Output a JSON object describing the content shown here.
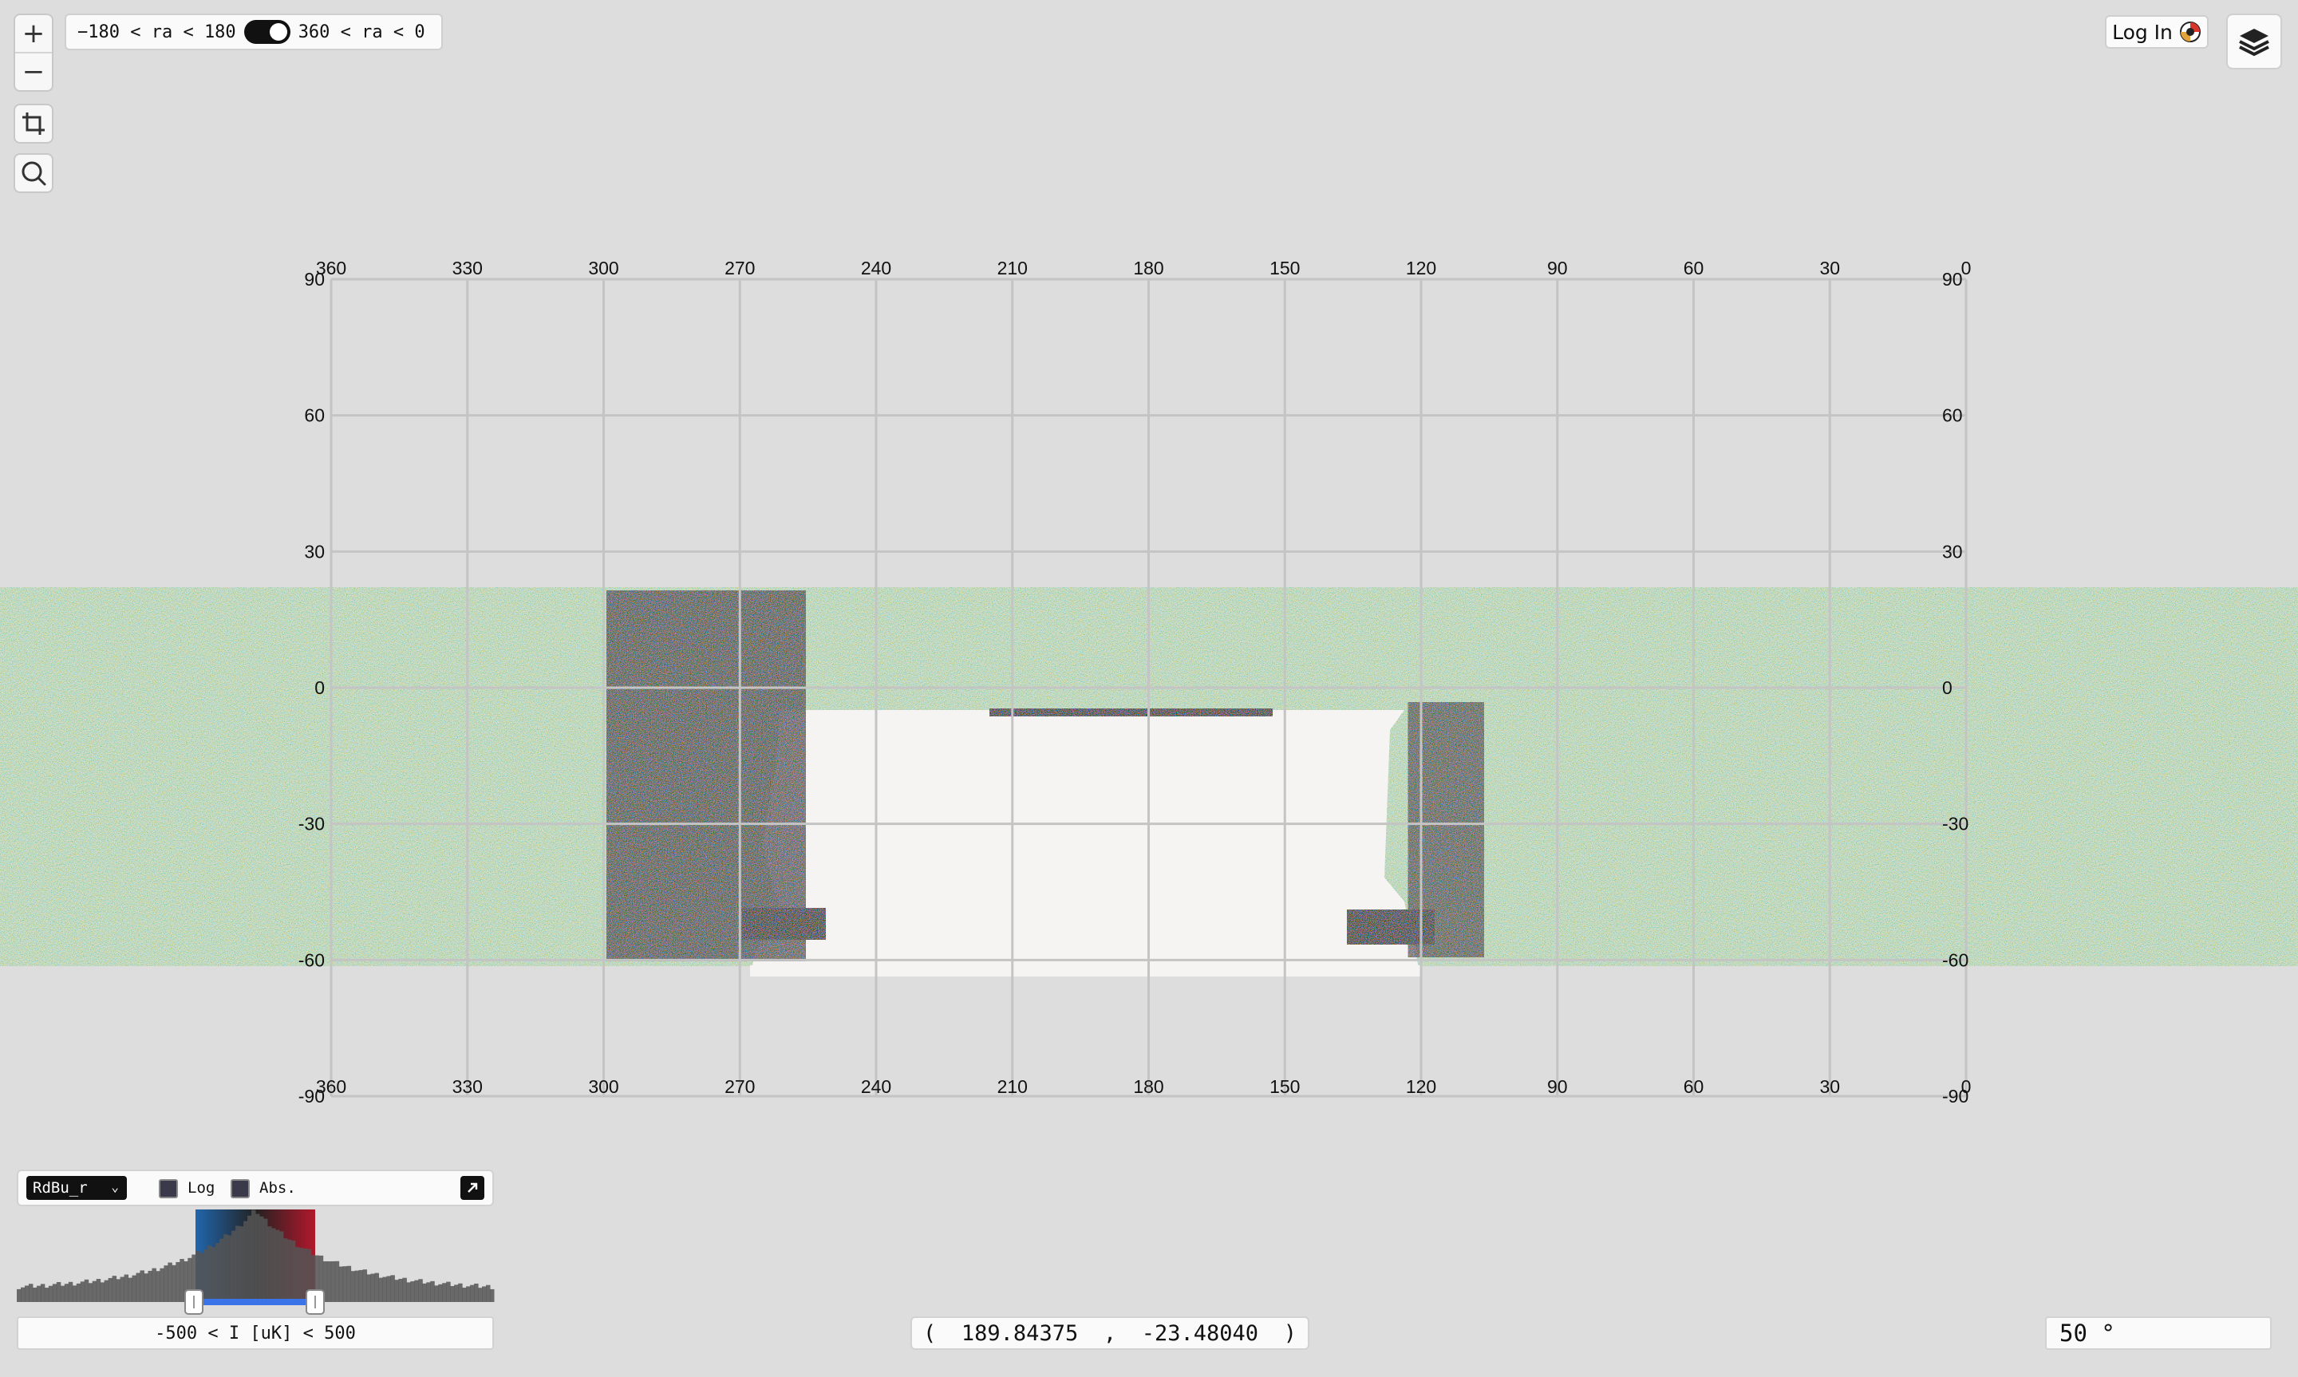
{
  "controls": {
    "zoom_in_label": "+",
    "zoom_out_label": "−",
    "ra_left_label": "−180 < ra < 180",
    "ra_right_label": "360 < ra < 0",
    "ra_toggle_on": true
  },
  "header": {
    "login_label": "Log In"
  },
  "map": {
    "ra_ticks": [
      "360",
      "330",
      "300",
      "270",
      "240",
      "210",
      "180",
      "150",
      "120",
      "90",
      "60",
      "30",
      "0"
    ],
    "dec_ticks": [
      "90",
      "60",
      "30",
      "0",
      "-30",
      "-60",
      "-90"
    ],
    "ra_range_deg": [
      360,
      0
    ],
    "dec_range_deg": [
      -90,
      90
    ],
    "coverage_dec_range_deg": [
      -63,
      22
    ]
  },
  "colormap": {
    "name": "RdBu_r",
    "log_label": "Log",
    "log_checked": false,
    "abs_label": "Abs.",
    "abs_checked": false,
    "range_text": "-500 < I [uK] < 500",
    "colors": {
      "low": "#2166ac",
      "mid": "#f7f7f7",
      "high": "#b2182b"
    }
  },
  "coordinates": {
    "open_paren": "(",
    "ra": "189.84375",
    "separator": ",",
    "dec": "-23.48040",
    "close_paren": ")"
  },
  "fov": {
    "value": "50 °"
  }
}
